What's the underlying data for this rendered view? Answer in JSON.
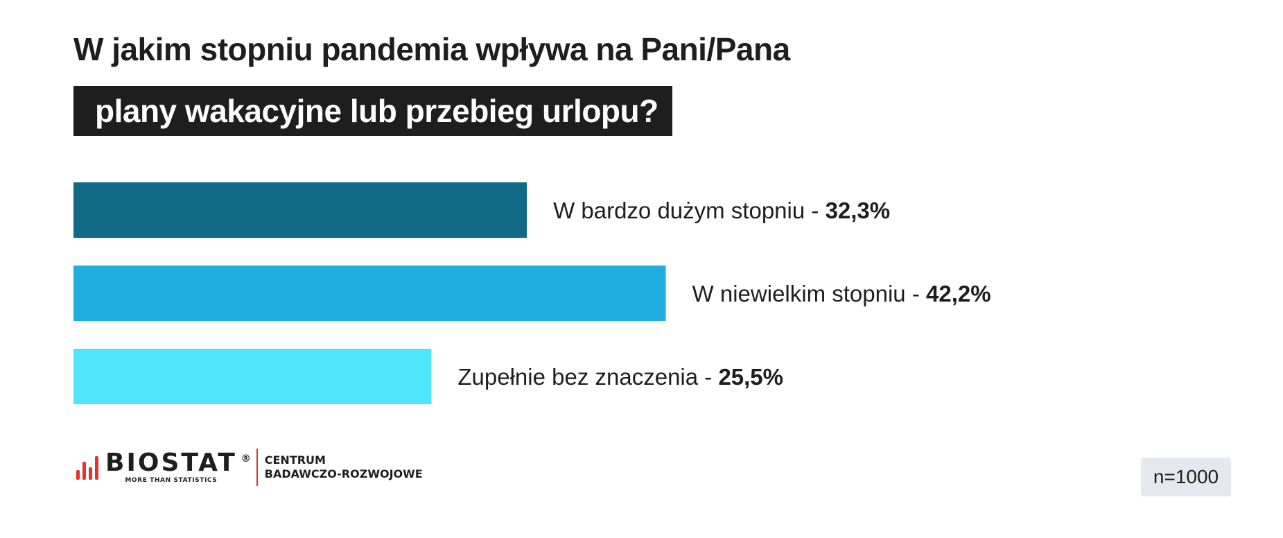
{
  "title": {
    "line1": "W jakim stopniu pandemia wpływa na Pani/Pana",
    "line2": "plany wakacyjne lub przebieg urlopu?"
  },
  "chart_data": {
    "type": "bar",
    "orientation": "horizontal",
    "categories": [
      "W bardzo dużym stopniu",
      "W niewielkim stopniu",
      "Zupełnie bez znaczenia"
    ],
    "values": [
      32.3,
      42.2,
      25.5
    ],
    "value_labels": [
      "32,3%",
      "42,2%",
      "25,5%"
    ],
    "separator": " - ",
    "unit": "%",
    "colors": [
      "#116a86",
      "#20aee1",
      "#4fe6fc"
    ],
    "xlim": [
      0,
      100
    ],
    "grid": false,
    "legend": "none"
  },
  "footer": {
    "logo_word": "BIOSTAT",
    "logo_registered": "®",
    "logo_tagline": "MORE THAN STATISTICS",
    "centre_line1": "CENTRUM",
    "centre_line2": "BADAWCZO-ROZWOJOWE",
    "sample": "n=1000"
  },
  "colors": {
    "text": "#1e1e1e",
    "title_bg": "#1e1e1e",
    "brand_red": "#e2332d",
    "badge_bg": "#e6e8f0"
  }
}
